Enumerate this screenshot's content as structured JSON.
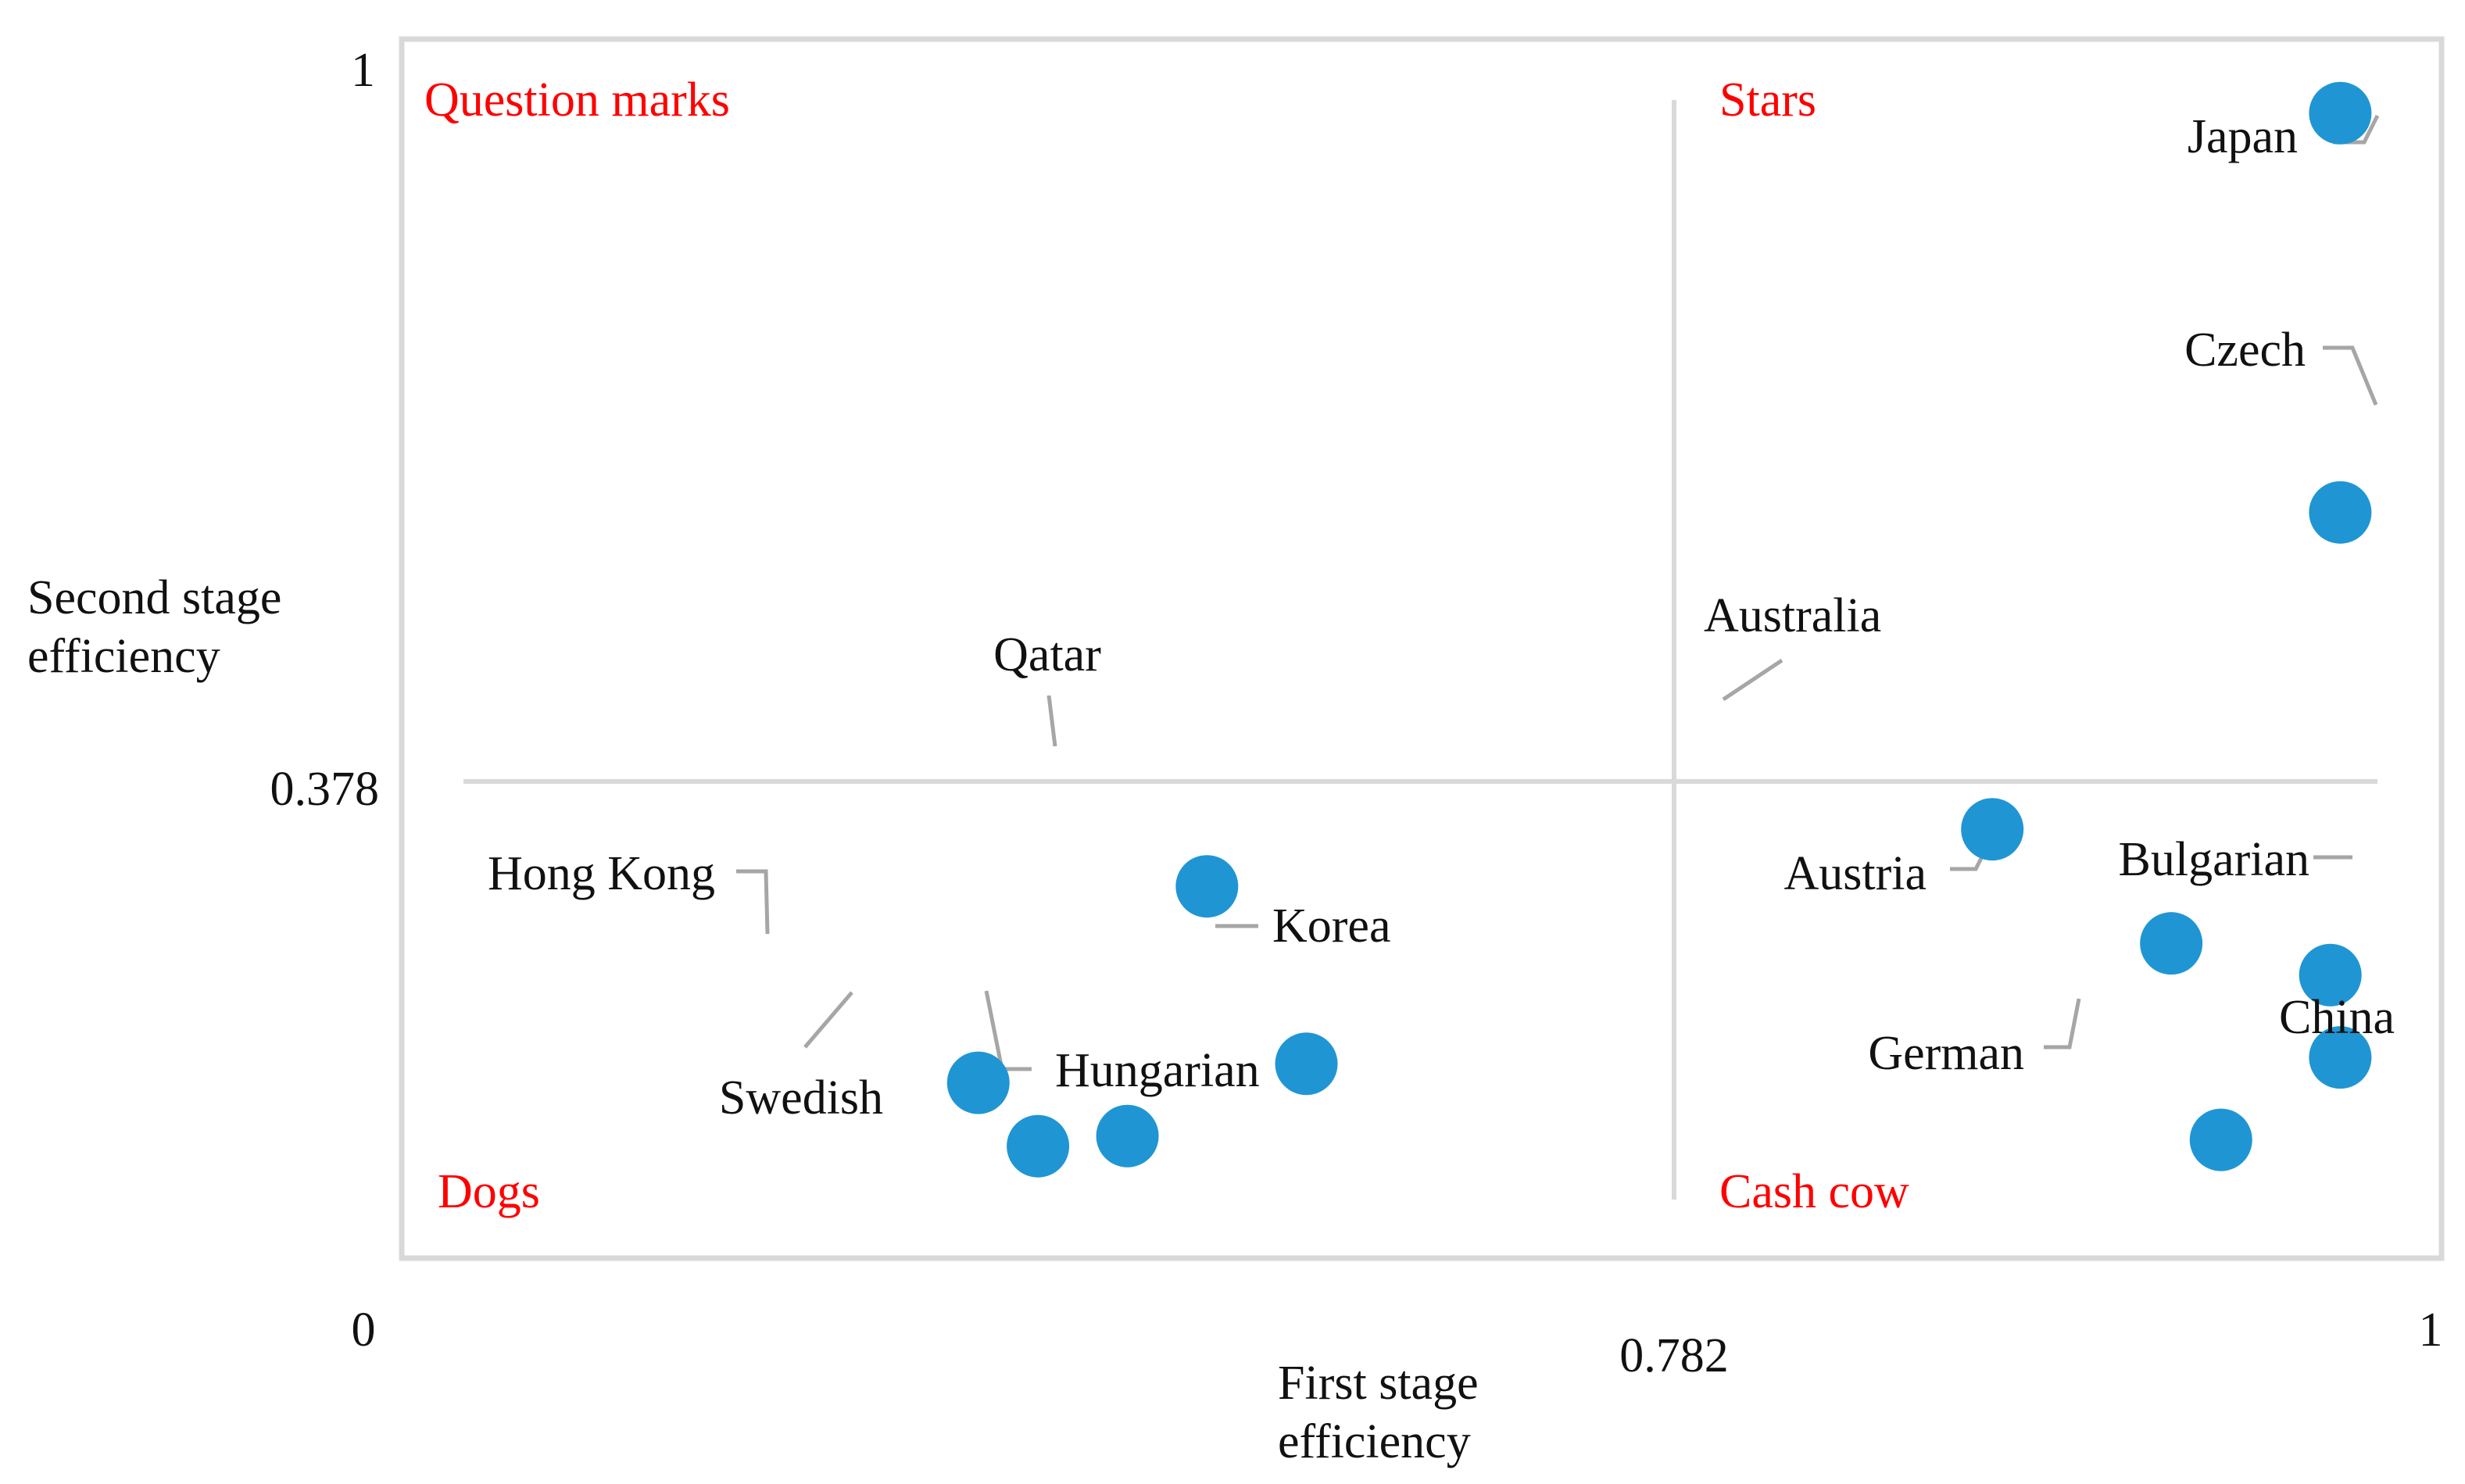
{
  "chart_data": {
    "type": "scatter",
    "title": "",
    "xlabel": [
      "First stage",
      "efficiency"
    ],
    "ylabel": [
      "Second stage",
      "efficiency"
    ],
    "x_tick_labels": {
      "min": "0",
      "threshold": "0.782",
      "max": "1"
    },
    "y_tick_labels": {
      "max": "1",
      "threshold": "0.378"
    },
    "xlim": [
      0,
      1
    ],
    "ylim": [
      -0.14,
      1
    ],
    "x_threshold": 0.782,
    "y_threshold": 0.378,
    "grid": false,
    "quadrants": [
      {
        "name": "Question marks",
        "position": "top-left"
      },
      {
        "name": "Stars",
        "position": "top-right"
      },
      {
        "name": "Dogs",
        "position": "bottom-left"
      },
      {
        "name": "Cash cow",
        "position": "bottom-right"
      }
    ],
    "points": [
      {
        "label": "Japan",
        "x": 0.975,
        "y": 0.965
      },
      {
        "label": "Czech",
        "x": 0.975,
        "y": 0.65
      },
      {
        "label": "Australia",
        "x": 0.8,
        "y": 0.4
      },
      {
        "label": "Qatar",
        "x": 0.405,
        "y": 0.355
      },
      {
        "label": "Austria",
        "x": 0.89,
        "y": 0.31
      },
      {
        "label": "Bulgarian",
        "x": 0.97,
        "y": 0.285
      },
      {
        "label": "China",
        "x": 0.975,
        "y": 0.22
      },
      {
        "label": "German",
        "x": 0.915,
        "y": 0.155
      },
      {
        "label": "Korea",
        "x": 0.455,
        "y": 0.215
      },
      {
        "label": "Hong Kong",
        "x": 0.29,
        "y": 0.2
      },
      {
        "label": "Swedish",
        "x": 0.32,
        "y": 0.15
      },
      {
        "label": "Hungarian",
        "x": 0.365,
        "y": 0.158
      }
    ]
  },
  "colors": {
    "marker": "#1f96d3",
    "quadrant_label": "#ff0000",
    "text": "#111111",
    "frame": "#d9d9d9",
    "leader": "#a6a6a6"
  }
}
